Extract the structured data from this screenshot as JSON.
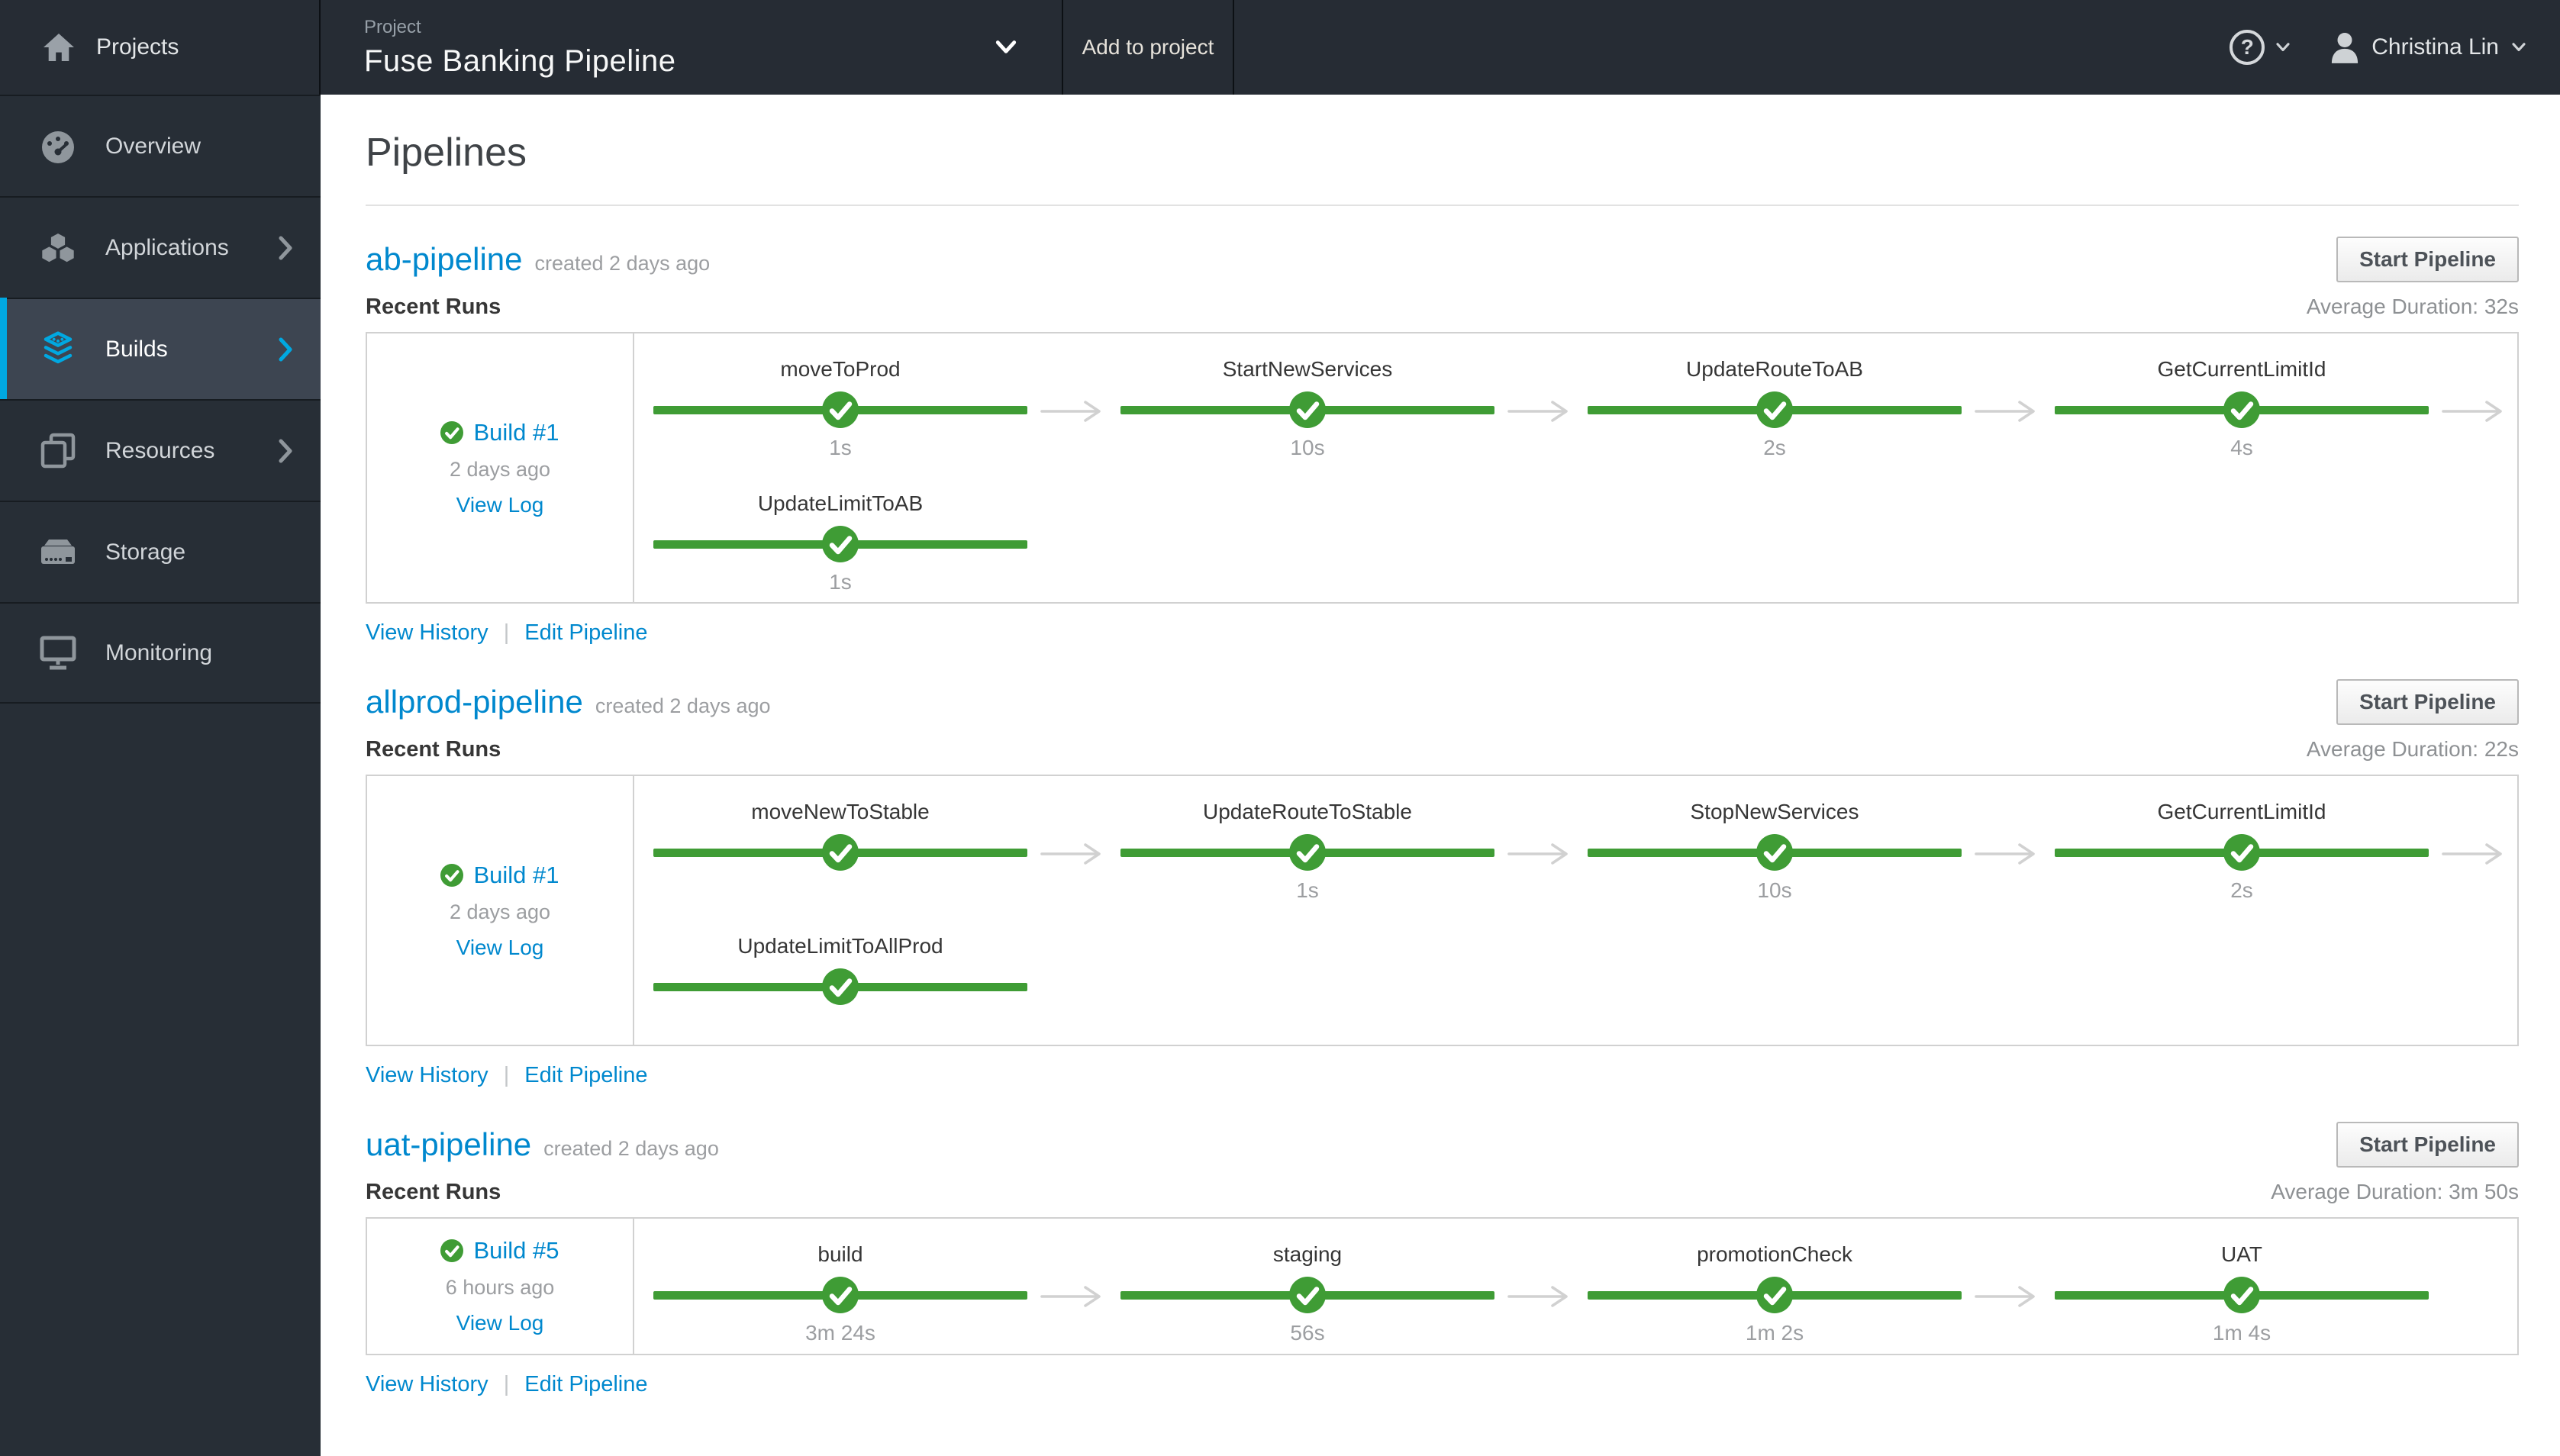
{
  "masthead": {
    "brand": "Projects",
    "project_label": "Project",
    "project_name": "Fuse Banking Pipeline",
    "add_to_project": "Add to project",
    "help_glyph": "?",
    "user_name": "Christina Lin"
  },
  "sidebar": {
    "items": [
      {
        "label": "Overview",
        "icon": "dashboard-icon",
        "has_chevron": false,
        "active": false
      },
      {
        "label": "Applications",
        "icon": "cubes-icon",
        "has_chevron": true,
        "active": false
      },
      {
        "label": "Builds",
        "icon": "builds-icon",
        "has_chevron": true,
        "active": true
      },
      {
        "label": "Resources",
        "icon": "copy-icon",
        "has_chevron": true,
        "active": false
      },
      {
        "label": "Storage",
        "icon": "storage-icon",
        "has_chevron": false,
        "active": false
      },
      {
        "label": "Monitoring",
        "icon": "monitor-icon",
        "has_chevron": false,
        "active": false
      }
    ]
  },
  "page": {
    "title": "Pipelines"
  },
  "labels": {
    "recent_runs": "Recent Runs",
    "start_pipeline": "Start Pipeline",
    "view_history": "View History",
    "edit_pipeline": "Edit Pipeline",
    "separator": "|",
    "view_log": "View Log",
    "average_duration_prefix": "Average Duration: "
  },
  "pipelines": [
    {
      "name": "ab-pipeline",
      "created": "created 2 days ago",
      "average_duration": "32s",
      "build": {
        "label": "Build #1",
        "when": "2 days ago"
      },
      "stage_rows": [
        {
          "trailing_arrow": true,
          "stages": [
            {
              "name": "moveToProd",
              "duration": "1s"
            },
            {
              "name": "StartNewServices",
              "duration": "10s"
            },
            {
              "name": "UpdateRouteToAB",
              "duration": "2s"
            },
            {
              "name": "GetCurrentLimitId",
              "duration": "4s"
            }
          ]
        },
        {
          "trailing_arrow": false,
          "stages": [
            {
              "name": "UpdateLimitToAB",
              "duration": "1s"
            }
          ]
        }
      ]
    },
    {
      "name": "allprod-pipeline",
      "created": "created 2 days ago",
      "average_duration": "22s",
      "build": {
        "label": "Build #1",
        "when": "2 days ago"
      },
      "stage_rows": [
        {
          "trailing_arrow": true,
          "stages": [
            {
              "name": "moveNewToStable",
              "duration": ""
            },
            {
              "name": "UpdateRouteToStable",
              "duration": "1s"
            },
            {
              "name": "StopNewServices",
              "duration": "10s"
            },
            {
              "name": "GetCurrentLimitId",
              "duration": "2s"
            }
          ]
        },
        {
          "trailing_arrow": false,
          "stages": [
            {
              "name": "UpdateLimitToAllProd",
              "duration": ""
            }
          ]
        }
      ]
    },
    {
      "name": "uat-pipeline",
      "created": "created 2 days ago",
      "average_duration": "3m 50s",
      "build": {
        "label": "Build #5",
        "when": "6 hours ago"
      },
      "stage_rows": [
        {
          "trailing_arrow": false,
          "stages": [
            {
              "name": "build",
              "duration": "3m 24s"
            },
            {
              "name": "staging",
              "duration": "56s"
            },
            {
              "name": "promotionCheck",
              "duration": "1m 2s"
            },
            {
              "name": "UAT",
              "duration": "1m 4s"
            }
          ]
        }
      ]
    }
  ],
  "colors": {
    "success_green": "#3f9c35",
    "link_blue": "#0088ce",
    "accent_cyan": "#00a8e1",
    "masthead_bg": "#262c34",
    "sidebar_bg": "#272e36",
    "box_border": "#d1d1d1",
    "muted_text": "#9c9ea1"
  }
}
